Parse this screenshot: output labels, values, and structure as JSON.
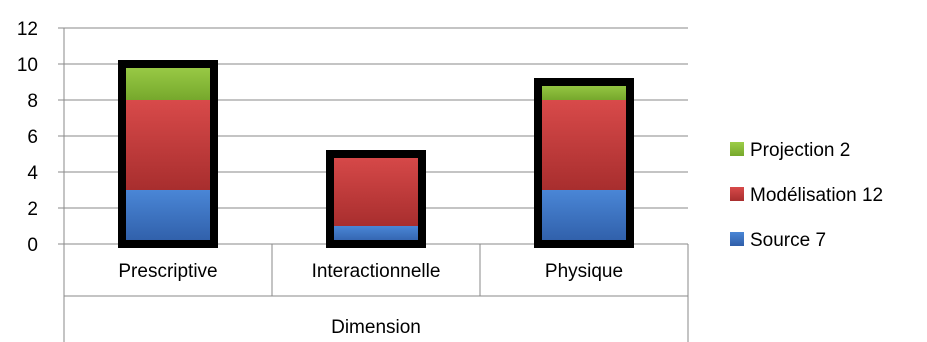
{
  "chart_data": {
    "type": "bar",
    "stacked": true,
    "categories": [
      "Prescriptive",
      "Interactionnelle",
      "Physique"
    ],
    "group_label": "Dimension",
    "ylim": [
      0,
      12
    ],
    "yticks": [
      0,
      2,
      4,
      6,
      8,
      10,
      12
    ],
    "grid": true,
    "legend_position": "right",
    "series": [
      {
        "name": "Source 7",
        "values": [
          3,
          1,
          3
        ],
        "color": "#3b6fc4"
      },
      {
        "name": "Modélisation 12",
        "values": [
          5,
          4,
          5
        ],
        "color": "#c23b3b"
      },
      {
        "name": "Projection 2",
        "values": [
          2,
          0,
          1
        ],
        "color": "#8cbd3a"
      }
    ]
  }
}
